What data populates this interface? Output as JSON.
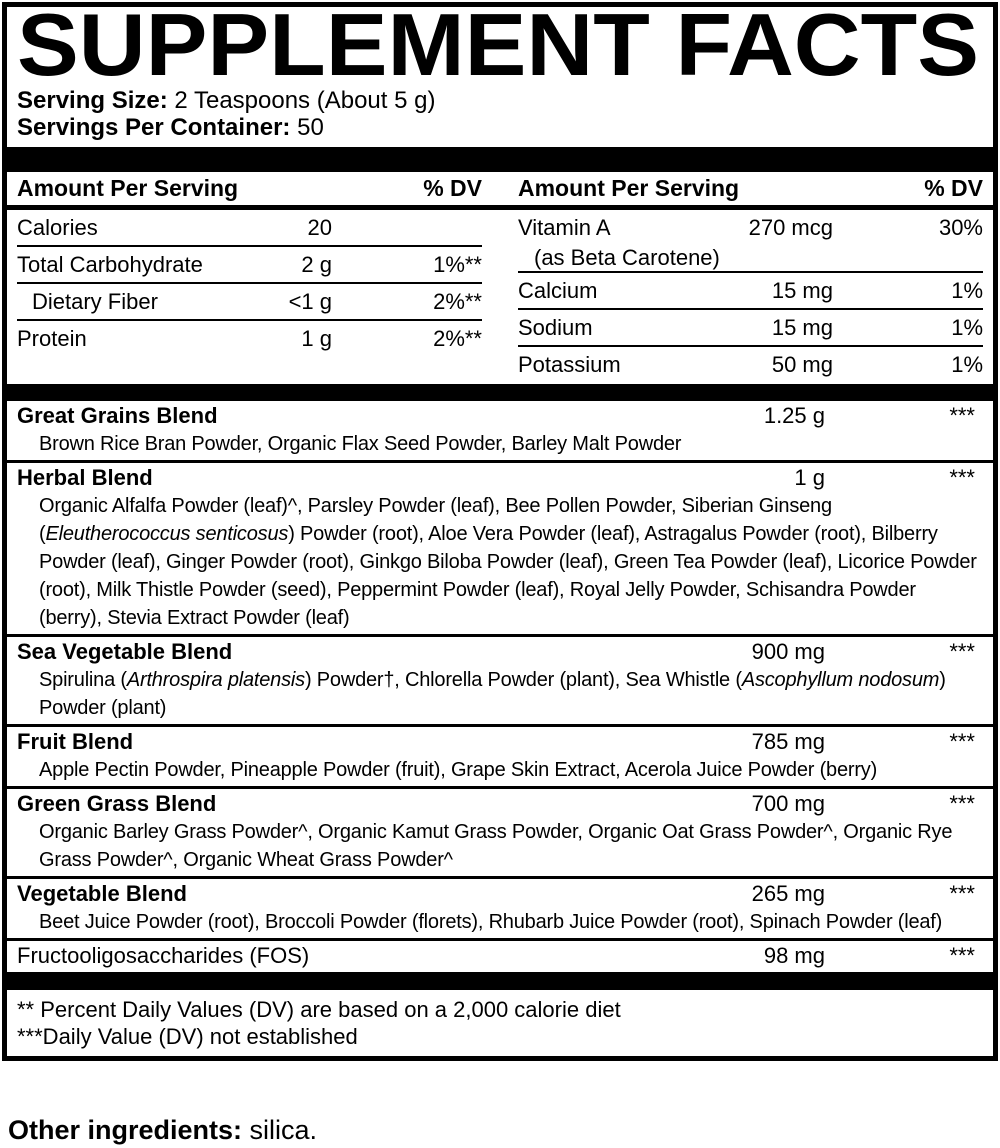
{
  "title": "SUPPLEMENT FACTS",
  "serving": {
    "size_label": "Serving Size:",
    "size_value": "2 Teaspoons (About 5 g)",
    "per_container_label": "Servings Per Container:",
    "per_container_value": "50"
  },
  "columns": {
    "header_amount": "Amount Per Serving",
    "header_dv": "% DV",
    "left_rows": [
      {
        "label": "Calories",
        "amount": "20",
        "dv": ""
      },
      {
        "label": "Total Carbohydrate",
        "amount": "2 g",
        "dv": "1%**"
      },
      {
        "label": "Dietary Fiber",
        "amount": "<1 g",
        "dv": "2%**"
      },
      {
        "label": "Protein",
        "amount": "1 g",
        "dv": "2%**"
      }
    ],
    "right_rows": [
      {
        "label": "Vitamin A",
        "sub": "(as Beta Carotene)",
        "amount": "270 mcg",
        "dv": "30%"
      },
      {
        "label": "Calcium",
        "amount": "15 mg",
        "dv": "1%"
      },
      {
        "label": "Sodium",
        "amount": "15 mg",
        "dv": "1%"
      },
      {
        "label": "Potassium",
        "amount": "50 mg",
        "dv": "1%"
      }
    ]
  },
  "blends": [
    {
      "name": "Great Grains Blend",
      "amount": "1.25 g",
      "dv": "***",
      "ingredients": [
        {
          "t": "Brown Rice Bran Powder, Organic Flax Seed Powder, Barley Malt Powder"
        }
      ]
    },
    {
      "name": "Herbal Blend",
      "amount": "1 g",
      "dv": "***",
      "ingredients": [
        {
          "t": "Organic Alfalfa Powder (leaf)^, Parsley Powder (leaf), Bee Pollen Powder, Siberian Ginseng ("
        },
        {
          "t": "Eleutherococcus senticosus",
          "i": true
        },
        {
          "t": ") Powder (root), Aloe Vera Powder (leaf), Astragalus Powder (root), Bilberry Powder (leaf), Ginger Powder (root), Ginkgo Biloba Powder (leaf), Green Tea Powder (leaf), Licorice Powder (root), Milk Thistle Powder (seed), Peppermint Powder (leaf), Royal Jelly Powder, Schisandra Powder (berry), Stevia Extract Powder (leaf)"
        }
      ]
    },
    {
      "name": "Sea Vegetable Blend",
      "amount": "900 mg",
      "dv": "***",
      "ingredients": [
        {
          "t": "Spirulina ("
        },
        {
          "t": "Arthrospira platensis",
          "i": true
        },
        {
          "t": ") Powder†, Chlorella Powder (plant), Sea Whistle ("
        },
        {
          "t": "Ascophyllum nodosum",
          "i": true
        },
        {
          "t": ") Powder (plant)"
        }
      ]
    },
    {
      "name": "Fruit Blend",
      "amount": "785 mg",
      "dv": "***",
      "ingredients": [
        {
          "t": "Apple Pectin Powder, Pineapple Powder (fruit), Grape Skin Extract, Acerola Juice Powder (berry)"
        }
      ]
    },
    {
      "name": "Green Grass Blend",
      "amount": "700 mg",
      "dv": "***",
      "ingredients": [
        {
          "t": "Organic Barley Grass Powder^, Organic Kamut Grass Powder, Organic Oat Grass Powder^, Organic Rye Grass Powder^, Organic Wheat Grass Powder^"
        }
      ]
    },
    {
      "name": "Vegetable Blend",
      "amount": "265 mg",
      "dv": "***",
      "ingredients": [
        {
          "t": "Beet Juice Powder (root), Broccoli Powder (florets), Rhubarb Juice Powder (root), Spinach Powder (leaf)"
        }
      ]
    }
  ],
  "fos": {
    "label": "Fructooligosaccharides (FOS)",
    "amount": "98 mg",
    "dv": "***"
  },
  "footnotes": [
    "** Percent Daily Values (DV) are based on a 2,000 calorie diet",
    "***Daily Value (DV) not established"
  ],
  "other": {
    "label": "Other ingredients:",
    "value": "silica."
  }
}
